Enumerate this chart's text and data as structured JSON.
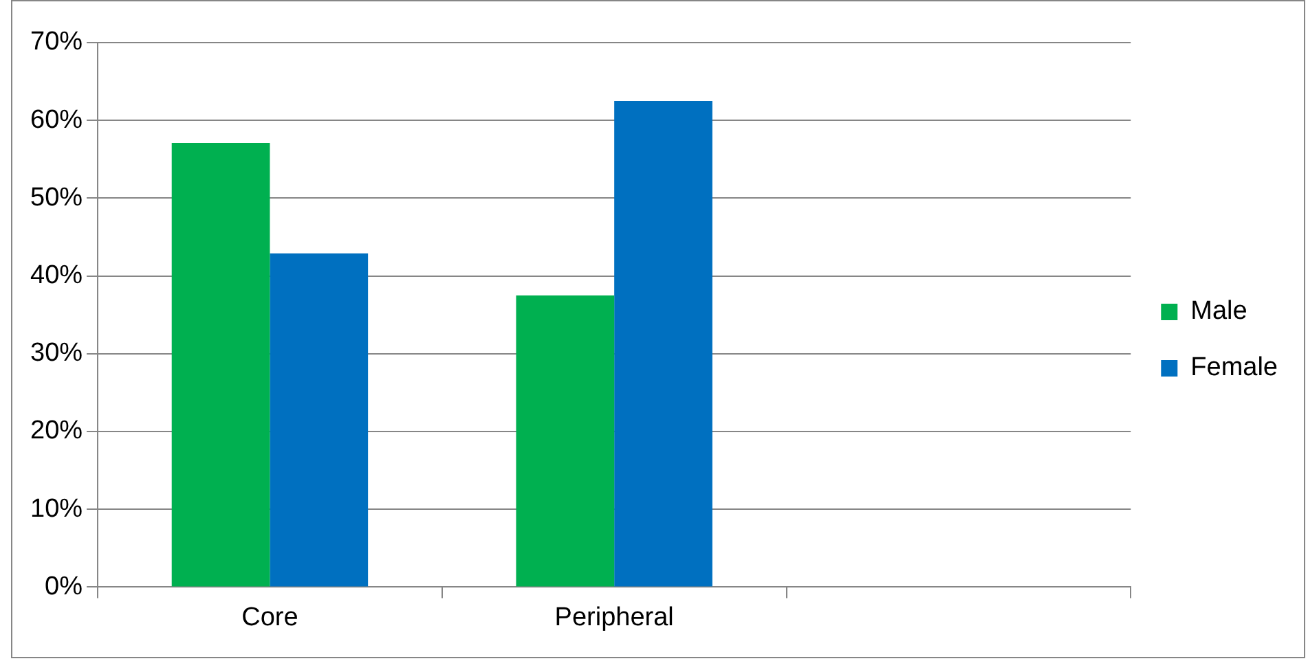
{
  "chart_data": {
    "type": "bar",
    "categories": [
      "Core",
      "Peripheral",
      null
    ],
    "series": [
      {
        "name": "Male",
        "color": "#00b050",
        "values": [
          57.1,
          37.5,
          null
        ]
      },
      {
        "name": "Female",
        "color": "#0070c0",
        "values": [
          42.9,
          62.5,
          null
        ]
      }
    ],
    "ylim": [
      0,
      70
    ],
    "yticks": [
      {
        "value": 0,
        "label": "0%"
      },
      {
        "value": 10,
        "label": "10%"
      },
      {
        "value": 20,
        "label": "20%"
      },
      {
        "value": 30,
        "label": "30%"
      },
      {
        "value": 40,
        "label": "40%"
      },
      {
        "value": 50,
        "label": "50%"
      },
      {
        "value": 60,
        "label": "60%"
      },
      {
        "value": 70,
        "label": "70%"
      }
    ],
    "grid": "y",
    "legend": "right"
  }
}
